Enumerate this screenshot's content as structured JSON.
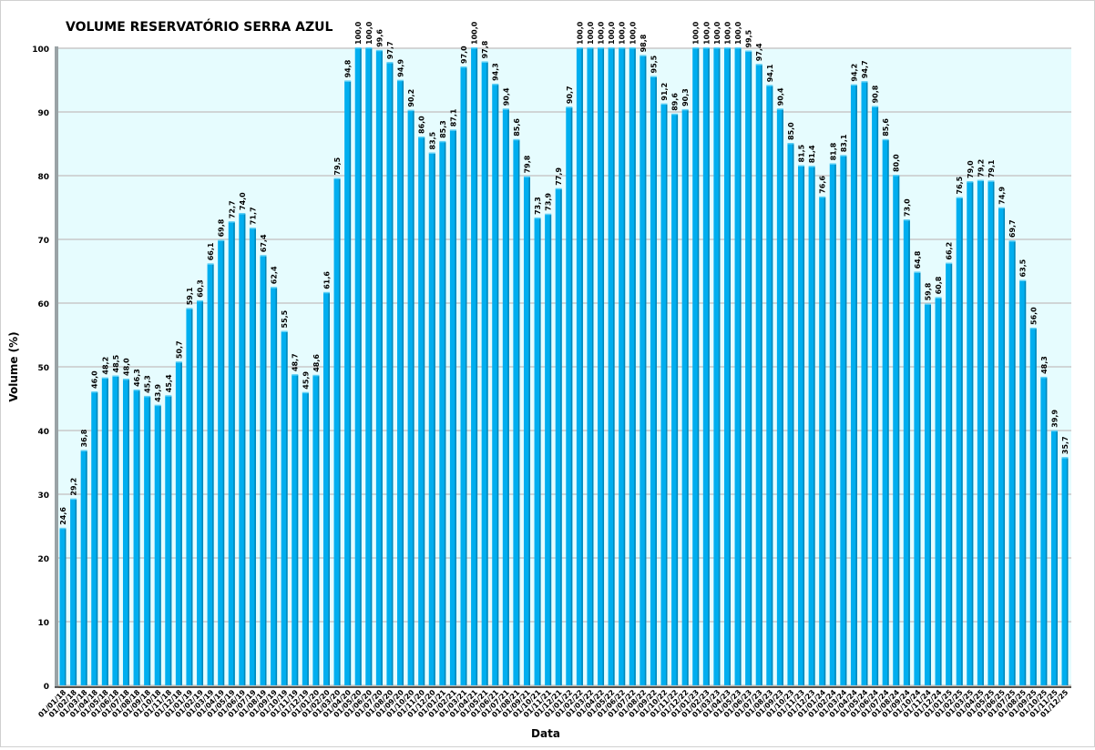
{
  "chart_data": {
    "type": "bar",
    "title": "VOLUME RESERVATÓRIO SERRA AZUL",
    "xlabel": "Data",
    "ylabel": "Volume (%)",
    "ylim": [
      0,
      100
    ],
    "yticks": [
      0,
      10,
      20,
      30,
      40,
      50,
      60,
      70,
      80,
      90,
      100
    ],
    "grid": true,
    "legend": "none",
    "bar_color": "#00AEEF",
    "plot_background": "#E6FCFE",
    "categories": [
      "01/01/18",
      "01/02/18",
      "01/03/18",
      "01/04/18",
      "01/05/18",
      "01/06/18",
      "01/07/18",
      "01/08/18",
      "01/09/18",
      "01/10/18",
      "01/11/18",
      "01/12/18",
      "01/01/19",
      "01/02/19",
      "01/03/19",
      "01/04/19",
      "01/05/19",
      "01/06/19",
      "01/07/19",
      "01/08/19",
      "01/09/19",
      "01/10/19",
      "01/11/19",
      "01/12/19",
      "01/01/20",
      "01/02/20",
      "01/03/20",
      "01/04/20",
      "01/05/20",
      "01/06/20",
      "01/07/20",
      "01/08/20",
      "01/09/20",
      "01/10/20",
      "01/11/20",
      "01/12/20",
      "01/01/21",
      "01/02/21",
      "01/03/21",
      "01/04/21",
      "01/05/21",
      "01/06/21",
      "01/07/21",
      "01/08/21",
      "01/09/21",
      "01/10/21",
      "01/11/21",
      "01/12/21",
      "01/01/22",
      "01/02/22",
      "01/03/22",
      "01/04/22",
      "01/05/22",
      "01/06/22",
      "01/07/22",
      "01/08/22",
      "01/09/22",
      "01/10/22",
      "01/11/22",
      "01/12/22",
      "01/01/23",
      "01/02/23",
      "01/03/23",
      "01/04/23",
      "01/05/23",
      "01/06/23",
      "01/07/23",
      "01/08/23",
      "01/09/23",
      "01/10/23",
      "01/11/23",
      "01/12/23",
      "01/01/24",
      "01/02/24",
      "01/03/24",
      "01/04/24",
      "01/05/24",
      "01/06/24",
      "01/07/24",
      "01/08/24",
      "01/09/24",
      "01/10/24",
      "01/11/24",
      "01/12/24",
      "01/01/25",
      "01/02/25",
      "01/03/25",
      "01/04/25",
      "01/05/25",
      "01/06/25",
      "01/07/25",
      "01/08/25",
      "01/09/25",
      "01/10/25",
      "01/11/25",
      "01/12/25"
    ],
    "values": [
      24.6,
      29.2,
      36.8,
      46.0,
      48.2,
      48.5,
      48.0,
      46.3,
      45.3,
      43.9,
      45.4,
      50.7,
      59.1,
      60.3,
      66.1,
      69.8,
      72.7,
      74.0,
      71.7,
      67.4,
      62.4,
      55.5,
      48.7,
      45.9,
      48.6,
      61.6,
      79.5,
      94.8,
      100.0,
      100.0,
      99.6,
      97.7,
      94.9,
      90.2,
      86.0,
      83.5,
      85.3,
      87.1,
      97.0,
      100.0,
      97.8,
      94.3,
      90.4,
      85.6,
      79.8,
      73.3,
      73.9,
      77.9,
      90.7,
      100.0,
      100.0,
      100.0,
      100.0,
      100.0,
      100.0,
      98.8,
      95.5,
      91.2,
      89.6,
      90.3,
      100.0,
      100.0,
      100.0,
      100.0,
      100.0,
      99.5,
      97.4,
      94.1,
      90.4,
      85.0,
      81.5,
      81.4,
      76.6,
      81.8,
      83.1,
      94.2,
      94.7,
      90.8,
      85.6,
      80.0,
      73.0,
      64.8,
      59.8,
      60.8,
      66.2,
      76.5,
      79.0,
      79.2,
      79.1,
      74.9,
      69.7,
      63.5,
      56.0,
      48.3,
      39.9,
      35.7
    ]
  }
}
